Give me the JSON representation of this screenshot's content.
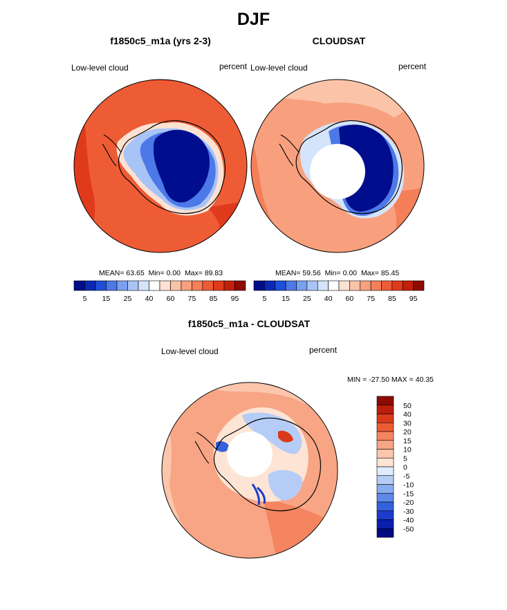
{
  "title": "DJF",
  "panels": [
    {
      "id": "model",
      "title": "f1850c5_m1a (yrs 2-3)",
      "left_label": "Low-level cloud",
      "right_label": "percent",
      "stats": {
        "mean_label": "MEAN=",
        "mean": "63.65",
        "min_label": "Min=",
        "min": "0.00",
        "max_label": "Max=",
        "max": "89.83"
      }
    },
    {
      "id": "cloudsat",
      "title": "CLOUDSAT",
      "left_label": "Low-level cloud",
      "right_label": "percent",
      "stats": {
        "mean_label": "MEAN=",
        "mean": "59.56",
        "min_label": "Min=",
        "min": "0.00",
        "max_label": "Max=",
        "max": "85.45"
      }
    },
    {
      "id": "difference",
      "title": "f1850c5_m1a - CLOUDSAT",
      "left_label": "Low-level cloud",
      "right_label": "percent",
      "minmax_text": "MIN = -27.50 MAX =  40.35"
    }
  ],
  "horizontal_colorbar": {
    "colors": [
      "#000d8c",
      "#0a2ab6",
      "#1e4fd8",
      "#4c78e8",
      "#7aa0f0",
      "#a8c4f6",
      "#d4e4fa",
      "#ffffff",
      "#fde2d2",
      "#fbc3a8",
      "#f8a07e",
      "#f47f58",
      "#ee5c36",
      "#e03a1c",
      "#c2200c",
      "#8e0b04"
    ],
    "tick_labels": [
      "5",
      "15",
      "25",
      "40",
      "60",
      "75",
      "85",
      "95"
    ]
  },
  "vertical_colorbar": {
    "colors": [
      "#8e0b04",
      "#bb1e0c",
      "#db3a1a",
      "#ee5c36",
      "#f48560",
      "#f8a585",
      "#fbc6ac",
      "#fde4d4",
      "#e0ecfb",
      "#b5cdf6",
      "#8aacf0",
      "#6088e8",
      "#3461dd",
      "#1b3ccc",
      "#0b1fae",
      "#020b80"
    ],
    "tick_labels": [
      "50",
      "40",
      "30",
      "20",
      "15",
      "10",
      "5",
      "0",
      "-5",
      "-10",
      "-15",
      "-20",
      "-30",
      "-40",
      "-50"
    ]
  }
}
